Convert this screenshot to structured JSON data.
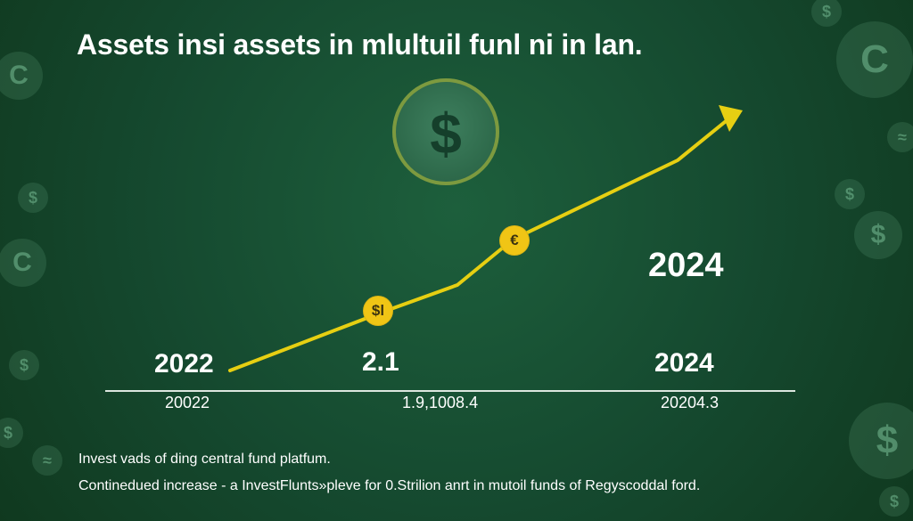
{
  "header": {
    "title": "Assets insi assets in mlultuil funl ni in lan."
  },
  "background_icons": [
    {
      "name": "dollar-icon",
      "symbol": "$"
    },
    {
      "name": "euro-icon",
      "symbol": "C"
    },
    {
      "name": "dollar-icon",
      "symbol": "$"
    },
    {
      "name": "euro-icon",
      "symbol": "C"
    },
    {
      "name": "wave-icon",
      "symbol": "≈"
    },
    {
      "name": "dollar-icon",
      "symbol": "$"
    },
    {
      "name": "dollar-icon",
      "symbol": "$"
    },
    {
      "name": "dollar-icon",
      "symbol": "$"
    },
    {
      "name": "dollar-icon",
      "symbol": "$"
    },
    {
      "name": "wave-icon",
      "symbol": "≈"
    }
  ],
  "coin": {
    "symbol": "$"
  },
  "markers": [
    {
      "name": "dollar-marker-icon",
      "symbol": "$l"
    },
    {
      "name": "euro-marker-icon",
      "symbol": "€"
    }
  ],
  "labels": {
    "year_2022": "2022",
    "value_mid": "2.1",
    "year_2024_right": "2024",
    "year_2024_top": "2024",
    "sub_left": "20022",
    "sub_mid": "1.9,1008.4",
    "sub_right": "20204.3"
  },
  "notes": {
    "line1": "Invest vads of ding central fund platfum.",
    "line2": "Continedued increase - a InvestFlunts»plеve for 0.Strilion anrt in mutoil funds of Regyscoddal ford."
  },
  "colors": {
    "background": "#15492f",
    "line": "#e6cf12",
    "text": "#ffffff",
    "axis": "#e7efe9"
  },
  "chart_data": {
    "type": "line",
    "title": "Assets insi assets in mlultuil funl ni in lan.",
    "x": [
      "2022",
      "2.1",
      "2024"
    ],
    "x_labels": [
      "20022",
      "1.9,1008.4",
      "20204.3"
    ],
    "grid": false
  }
}
